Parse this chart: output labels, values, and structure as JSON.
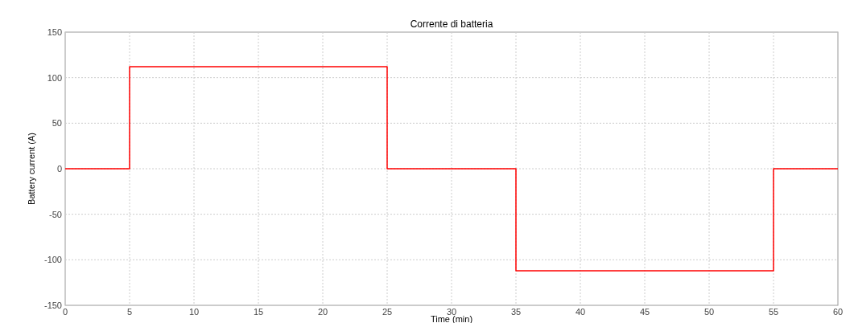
{
  "chart_data": {
    "type": "step",
    "title": "Corrente di batteria",
    "xlabel": "Time (min)",
    "ylabel": "Battery current (A)",
    "x": [
      0,
      5,
      25,
      35,
      55,
      60
    ],
    "series": [
      {
        "color": "#ff0000",
        "values": [
          0,
          112,
          0,
          -112,
          0,
          0
        ]
      }
    ],
    "xlim": [
      0,
      60
    ],
    "xticks": [
      0,
      5,
      10,
      15,
      20,
      25,
      30,
      35,
      40,
      45,
      50,
      55,
      60
    ],
    "ylim": [
      -150,
      150
    ],
    "yticks": [
      -150,
      -100,
      -50,
      0,
      50,
      100,
      150
    ],
    "grid": true
  }
}
